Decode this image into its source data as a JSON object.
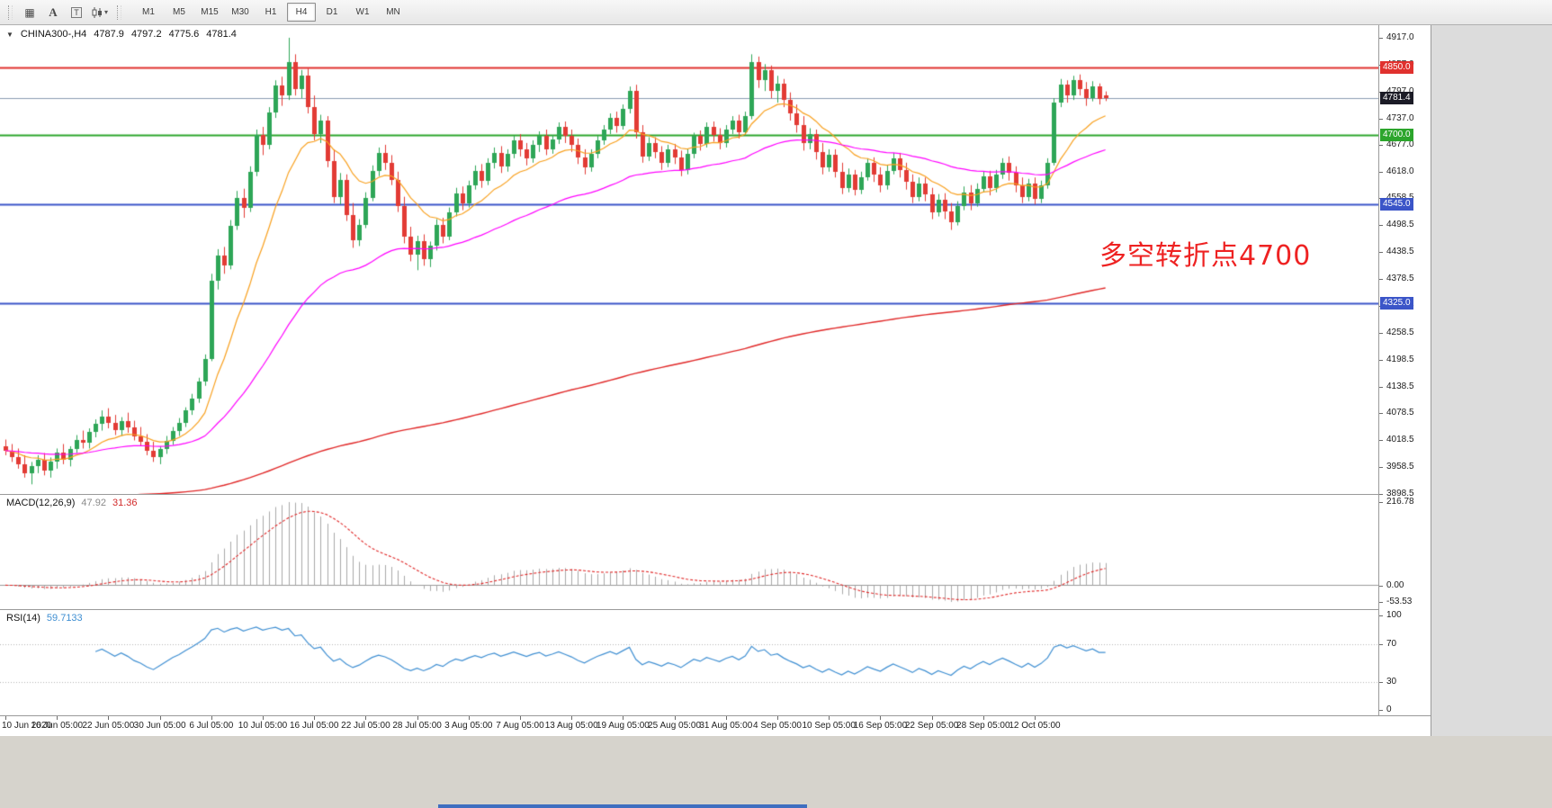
{
  "toolbar": {
    "icons": [
      {
        "name": "market-watch-icon",
        "glyph": "▦"
      },
      {
        "name": "text-tool-icon",
        "glyph": "A"
      },
      {
        "name": "text-frame-tool-icon",
        "glyph": "T"
      },
      {
        "name": "chart-type-caret-icon",
        "glyph": "▾"
      }
    ],
    "timeframes": [
      "M1",
      "M5",
      "M15",
      "M30",
      "H1",
      "H4",
      "D1",
      "W1",
      "MN"
    ],
    "active_timeframe": "H4"
  },
  "chart": {
    "symbol_period": "CHINA300-,H4",
    "ohlc_display": {
      "open": "4787.9",
      "high": "4797.2",
      "low": "4775.6",
      "close": "4781.4"
    },
    "annotation": {
      "text": "多空转折点4700",
      "color": "#ee2222"
    },
    "levels": [
      {
        "value": 4850.0,
        "label": "4850.0",
        "color": "#e0312e",
        "width": 2
      },
      {
        "value": 4700.0,
        "label": "4700.0",
        "color": "#2ca52c",
        "width": 2
      },
      {
        "value": 4545.0,
        "label": "4545.0",
        "color": "#3b55c8",
        "width": 2
      },
      {
        "value": 4325.0,
        "label": "4325.0",
        "color": "#3b55c8",
        "width": 2
      }
    ],
    "current_price": {
      "value": 4781.4,
      "label": "4781.4",
      "line_color": "#8a9bb0",
      "label_bg": "#1b1b26"
    },
    "y_ticks": [
      "4917.0",
      "4857.0",
      "4797.0",
      "4737.0",
      "4677.0",
      "4618.0",
      "4558.5",
      "4498.5",
      "4438.5",
      "4378.5",
      "4318.5",
      "4258.5",
      "4198.5",
      "4138.5",
      "4078.5",
      "4018.5",
      "3958.5",
      "3898.5"
    ],
    "time_labels": [
      {
        "text": "10 Jun 2020",
        "index": 0
      },
      {
        "text": "16 Jun 05:00",
        "index": 8
      },
      {
        "text": "22 Jun 05:00",
        "index": 16
      },
      {
        "text": "30 Jun 05:00",
        "index": 24
      },
      {
        "text": "6 Jul 05:00",
        "index": 32
      },
      {
        "text": "10 Jul 05:00",
        "index": 40
      },
      {
        "text": "16 Jul 05:00",
        "index": 48
      },
      {
        "text": "22 Jul 05:00",
        "index": 56
      },
      {
        "text": "28 Jul 05:00",
        "index": 64
      },
      {
        "text": "3 Aug 05:00",
        "index": 72
      },
      {
        "text": "7 Aug 05:00",
        "index": 80
      },
      {
        "text": "13 Aug 05:00",
        "index": 88
      },
      {
        "text": "19 Aug 05:00",
        "index": 96
      },
      {
        "text": "25 Aug 05:00",
        "index": 104
      },
      {
        "text": "31 Aug 05:00",
        "index": 112
      },
      {
        "text": "4 Sep 05:00",
        "index": 120
      },
      {
        "text": "10 Sep 05:00",
        "index": 128
      },
      {
        "text": "16 Sep 05:00",
        "index": 136
      },
      {
        "text": "22 Sep 05:00",
        "index": 144
      },
      {
        "text": "28 Sep 05:00",
        "index": 152
      },
      {
        "text": "12 Oct 05:00",
        "index": 160
      }
    ]
  },
  "macd_panel": {
    "title": "MACD(12,26,9)",
    "value_main": "47.92",
    "value_signal": "31.36",
    "axis": [
      "216.78",
      "0.00",
      "-53.53"
    ]
  },
  "rsi_panel": {
    "title": "RSI(14)",
    "value": "59.7133",
    "axis": [
      "100",
      "70",
      "30",
      "0"
    ]
  },
  "chart_data": {
    "type": "candlestick",
    "symbol": "CHINA300-",
    "timeframe": "H4",
    "title": "CHINA300-,H4",
    "ohlc_current": {
      "open": 4787.9,
      "high": 4797.2,
      "low": 4775.6,
      "close": 4781.4
    },
    "ylim": [
      3898.5,
      4945
    ],
    "colors": {
      "up": "#2ea657",
      "down": "#e23b35"
    },
    "horizontal_levels": [
      4850.0,
      4700.0,
      4545.0,
      4325.0
    ],
    "moving_averages": [
      {
        "name": "MA-fast",
        "period": 13,
        "color": "#f8a01e",
        "width": 1.2
      },
      {
        "name": "MA-medium",
        "period": 50,
        "color": "#ff00ff",
        "width": 1.2
      },
      {
        "name": "MA-slow",
        "period": 300,
        "color": "#e02828",
        "width": 1.4,
        "seed": 3880
      }
    ],
    "indicators": {
      "macd": {
        "fast": 12,
        "slow": 26,
        "signal": 9,
        "current_main": 47.92,
        "current_signal": 31.36,
        "axis": {
          "max": 216.78,
          "zero": 0.0,
          "min": -53.53
        }
      },
      "rsi": {
        "period": 14,
        "current": 59.7133,
        "levels": [
          70,
          30
        ],
        "range": [
          0,
          100
        ]
      }
    },
    "ohlc": [
      [
        4005,
        4020,
        3985,
        3995
      ],
      [
        3995,
        4010,
        3970,
        3980
      ],
      [
        3980,
        4000,
        3955,
        3965
      ],
      [
        3965,
        3985,
        3935,
        3945
      ],
      [
        3945,
        3970,
        3920,
        3960
      ],
      [
        3960,
        3985,
        3945,
        3975
      ],
      [
        3975,
        3990,
        3940,
        3950
      ],
      [
        3950,
        3980,
        3935,
        3970
      ],
      [
        3970,
        4000,
        3955,
        3990
      ],
      [
        3990,
        4010,
        3965,
        3975
      ],
      [
        3975,
        4005,
        3960,
        3998
      ],
      [
        3998,
        4030,
        3990,
        4020
      ],
      [
        4020,
        4040,
        4000,
        4012
      ],
      [
        4012,
        4045,
        4000,
        4038
      ],
      [
        4038,
        4065,
        4025,
        4055
      ],
      [
        4055,
        4085,
        4040,
        4072
      ],
      [
        4072,
        4090,
        4045,
        4058
      ],
      [
        4058,
        4075,
        4030,
        4042
      ],
      [
        4042,
        4070,
        4028,
        4062
      ],
      [
        4062,
        4080,
        4035,
        4048
      ],
      [
        4048,
        4062,
        4018,
        4028
      ],
      [
        4028,
        4048,
        4005,
        4015
      ],
      [
        4015,
        4032,
        3985,
        3995
      ],
      [
        3995,
        4015,
        3970,
        3980
      ],
      [
        3980,
        4005,
        3965,
        3998
      ],
      [
        3998,
        4028,
        3988,
        4018
      ],
      [
        4018,
        4048,
        4008,
        4040
      ],
      [
        4040,
        4068,
        4028,
        4058
      ],
      [
        4058,
        4092,
        4048,
        4085
      ],
      [
        4085,
        4122,
        4075,
        4112
      ],
      [
        4112,
        4158,
        4102,
        4150
      ],
      [
        4150,
        4210,
        4140,
        4200
      ],
      [
        4200,
        4390,
        4195,
        4375
      ],
      [
        4375,
        4445,
        4355,
        4430
      ],
      [
        4430,
        4450,
        4390,
        4408
      ],
      [
        4408,
        4510,
        4400,
        4498
      ],
      [
        4498,
        4575,
        4488,
        4560
      ],
      [
        4560,
        4580,
        4515,
        4538
      ],
      [
        4538,
        4630,
        4528,
        4618
      ],
      [
        4618,
        4712,
        4608,
        4700
      ],
      [
        4700,
        4718,
        4655,
        4678
      ],
      [
        4678,
        4762,
        4668,
        4750
      ],
      [
        4750,
        4822,
        4738,
        4810
      ],
      [
        4810,
        4830,
        4765,
        4788
      ],
      [
        4788,
        4917,
        4778,
        4862
      ],
      [
        4862,
        4880,
        4788,
        4802
      ],
      [
        4802,
        4845,
        4782,
        4832
      ],
      [
        4832,
        4848,
        4748,
        4762
      ],
      [
        4762,
        4788,
        4688,
        4702
      ],
      [
        4702,
        4745,
        4682,
        4732
      ],
      [
        4732,
        4742,
        4628,
        4642
      ],
      [
        4642,
        4668,
        4548,
        4562
      ],
      [
        4562,
        4615,
        4545,
        4600
      ],
      [
        4600,
        4612,
        4508,
        4522
      ],
      [
        4522,
        4548,
        4448,
        4465
      ],
      [
        4465,
        4512,
        4452,
        4500
      ],
      [
        4500,
        4572,
        4492,
        4560
      ],
      [
        4560,
        4632,
        4552,
        4620
      ],
      [
        4620,
        4672,
        4608,
        4660
      ],
      [
        4660,
        4678,
        4622,
        4638
      ],
      [
        4638,
        4655,
        4588,
        4600
      ],
      [
        4600,
        4618,
        4528,
        4542
      ],
      [
        4542,
        4562,
        4458,
        4472
      ],
      [
        4472,
        4495,
        4418,
        4432
      ],
      [
        4432,
        4475,
        4398,
        4462
      ],
      [
        4462,
        4478,
        4408,
        4422
      ],
      [
        4422,
        4462,
        4405,
        4452
      ],
      [
        4452,
        4512,
        4442,
        4500
      ],
      [
        4500,
        4515,
        4458,
        4472
      ],
      [
        4472,
        4538,
        4465,
        4528
      ],
      [
        4528,
        4582,
        4518,
        4570
      ],
      [
        4570,
        4585,
        4532,
        4548
      ],
      [
        4548,
        4598,
        4538,
        4588
      ],
      [
        4588,
        4632,
        4578,
        4620
      ],
      [
        4620,
        4635,
        4582,
        4598
      ],
      [
        4598,
        4648,
        4588,
        4638
      ],
      [
        4638,
        4672,
        4625,
        4660
      ],
      [
        4660,
        4675,
        4615,
        4630
      ],
      [
        4630,
        4668,
        4618,
        4658
      ],
      [
        4658,
        4698,
        4648,
        4688
      ],
      [
        4688,
        4702,
        4652,
        4668
      ],
      [
        4668,
        4682,
        4632,
        4648
      ],
      [
        4648,
        4688,
        4638,
        4678
      ],
      [
        4678,
        4708,
        4662,
        4698
      ],
      [
        4698,
        4712,
        4655,
        4668
      ],
      [
        4668,
        4700,
        4658,
        4690
      ],
      [
        4690,
        4728,
        4680,
        4718
      ],
      [
        4718,
        4730,
        4682,
        4698
      ],
      [
        4698,
        4712,
        4662,
        4678
      ],
      [
        4678,
        4692,
        4635,
        4650
      ],
      [
        4650,
        4668,
        4612,
        4628
      ],
      [
        4628,
        4668,
        4618,
        4658
      ],
      [
        4658,
        4698,
        4648,
        4688
      ],
      [
        4688,
        4722,
        4678,
        4712
      ],
      [
        4712,
        4748,
        4702,
        4738
      ],
      [
        4738,
        4752,
        4705,
        4720
      ],
      [
        4720,
        4768,
        4712,
        4758
      ],
      [
        4758,
        4808,
        4748,
        4798
      ],
      [
        4798,
        4812,
        4692,
        4705
      ],
      [
        4705,
        4722,
        4638,
        4652
      ],
      [
        4652,
        4695,
        4642,
        4682
      ],
      [
        4682,
        4695,
        4648,
        4662
      ],
      [
        4662,
        4675,
        4622,
        4638
      ],
      [
        4638,
        4678,
        4628,
        4668
      ],
      [
        4668,
        4680,
        4635,
        4650
      ],
      [
        4650,
        4665,
        4608,
        4622
      ],
      [
        4622,
        4668,
        4612,
        4658
      ],
      [
        4658,
        4705,
        4648,
        4698
      ],
      [
        4698,
        4710,
        4665,
        4680
      ],
      [
        4680,
        4728,
        4672,
        4718
      ],
      [
        4718,
        4730,
        4685,
        4700
      ],
      [
        4700,
        4715,
        4668,
        4682
      ],
      [
        4682,
        4722,
        4672,
        4712
      ],
      [
        4712,
        4742,
        4702,
        4732
      ],
      [
        4732,
        4745,
        4692,
        4705
      ],
      [
        4705,
        4752,
        4698,
        4742
      ],
      [
        4742,
        4880,
        4735,
        4862
      ],
      [
        4862,
        4875,
        4805,
        4822
      ],
      [
        4822,
        4858,
        4798,
        4845
      ],
      [
        4845,
        4855,
        4782,
        4798
      ],
      [
        4798,
        4832,
        4772,
        4815
      ],
      [
        4815,
        4825,
        4762,
        4778
      ],
      [
        4778,
        4795,
        4732,
        4748
      ],
      [
        4748,
        4768,
        4705,
        4722
      ],
      [
        4722,
        4742,
        4665,
        4682
      ],
      [
        4682,
        4715,
        4668,
        4702
      ],
      [
        4702,
        4712,
        4645,
        4662
      ],
      [
        4662,
        4682,
        4612,
        4628
      ],
      [
        4628,
        4668,
        4618,
        4655
      ],
      [
        4655,
        4668,
        4605,
        4618
      ],
      [
        4618,
        4638,
        4568,
        4582
      ],
      [
        4582,
        4625,
        4572,
        4612
      ],
      [
        4612,
        4622,
        4565,
        4578
      ],
      [
        4578,
        4618,
        4568,
        4605
      ],
      [
        4605,
        4648,
        4598,
        4638
      ],
      [
        4638,
        4650,
        4595,
        4612
      ],
      [
        4612,
        4628,
        4572,
        4588
      ],
      [
        4588,
        4632,
        4578,
        4620
      ],
      [
        4620,
        4660,
        4612,
        4648
      ],
      [
        4648,
        4660,
        4605,
        4622
      ],
      [
        4622,
        4638,
        4578,
        4595
      ],
      [
        4595,
        4612,
        4548,
        4562
      ],
      [
        4562,
        4605,
        4552,
        4592
      ],
      [
        4592,
        4605,
        4552,
        4568
      ],
      [
        4568,
        4582,
        4512,
        4528
      ],
      [
        4528,
        4568,
        4518,
        4555
      ],
      [
        4555,
        4570,
        4512,
        4530
      ],
      [
        4530,
        4548,
        4488,
        4505
      ],
      [
        4505,
        4552,
        4498,
        4542
      ],
      [
        4542,
        4585,
        4532,
        4572
      ],
      [
        4572,
        4588,
        4532,
        4548
      ],
      [
        4548,
        4592,
        4540,
        4580
      ],
      [
        4580,
        4618,
        4572,
        4608
      ],
      [
        4608,
        4620,
        4565,
        4582
      ],
      [
        4582,
        4622,
        4572,
        4612
      ],
      [
        4612,
        4648,
        4602,
        4638
      ],
      [
        4638,
        4652,
        4598,
        4615
      ],
      [
        4615,
        4630,
        4572,
        4588
      ],
      [
        4588,
        4605,
        4548,
        4562
      ],
      [
        4562,
        4602,
        4552,
        4592
      ],
      [
        4592,
        4605,
        4545,
        4558
      ],
      [
        4558,
        4598,
        4548,
        4588
      ],
      [
        4588,
        4648,
        4580,
        4638
      ],
      [
        4638,
        4782,
        4632,
        4772
      ],
      [
        4772,
        4825,
        4762,
        4812
      ],
      [
        4812,
        4822,
        4772,
        4788
      ],
      [
        4788,
        4832,
        4778,
        4822
      ],
      [
        4822,
        4835,
        4788,
        4802
      ],
      [
        4802,
        4818,
        4765,
        4782
      ],
      [
        4782,
        4820,
        4775,
        4808
      ],
      [
        4808,
        4815,
        4768,
        4781
      ],
      [
        4787.9,
        4797.2,
        4775.6,
        4781.4
      ]
    ]
  }
}
